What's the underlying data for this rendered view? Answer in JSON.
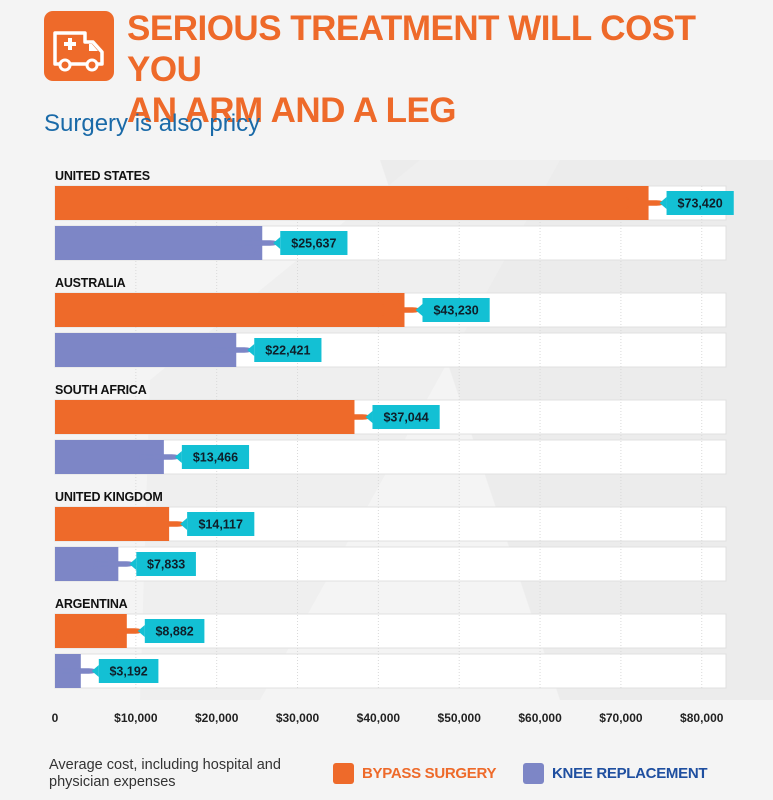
{
  "header": {
    "icon": "ambulance-icon",
    "title_line1": "SERIOUS TREATMENT WILL COST YOU",
    "title_line2": "AN ARM AND A LEG"
  },
  "subtitle": "Surgery is also pricy",
  "footnote": "Average cost, including hospital and physician expenses",
  "legend": {
    "bypass": "BYPASS SURGERY",
    "knee": "KNEE REPLACEMENT"
  },
  "colors": {
    "bypass": "#ee6a2a",
    "knee": "#7d86c6",
    "label_bg": "#13c0d4",
    "icon_bg": "#ee6a2a",
    "title": "#ee6a2a",
    "subtitle": "#1a6aa8"
  },
  "chart_data": {
    "type": "bar",
    "orientation": "horizontal",
    "categories": [
      "UNITED STATES",
      "AUSTRALIA",
      "SOUTH AFRICA",
      "UNITED KINGDOM",
      "ARGENTINA"
    ],
    "series": [
      {
        "name": "BYPASS SURGERY",
        "values": [
          73420,
          43230,
          37044,
          14117,
          8882
        ],
        "labels": [
          "$73,420",
          "$43,230",
          "$37,044",
          "$14,117",
          "$8,882"
        ]
      },
      {
        "name": "KNEE REPLACEMENT",
        "values": [
          25637,
          22421,
          13466,
          7833,
          3192
        ],
        "labels": [
          "$25,637",
          "$22,421",
          "$13,466",
          "$7,833",
          "$3,192"
        ]
      }
    ],
    "x_ticks": [
      0,
      10000,
      20000,
      30000,
      40000,
      50000,
      60000,
      70000,
      80000
    ],
    "x_tick_labels": [
      "0",
      "$10,000",
      "$20,000",
      "$30,000",
      "$40,000",
      "$50,000",
      "$60,000",
      "$70,000",
      "$80,000"
    ],
    "xlim": [
      0,
      83000
    ],
    "grid": true,
    "legend_position": "bottom",
    "mark_icon": "airplane-icon"
  }
}
